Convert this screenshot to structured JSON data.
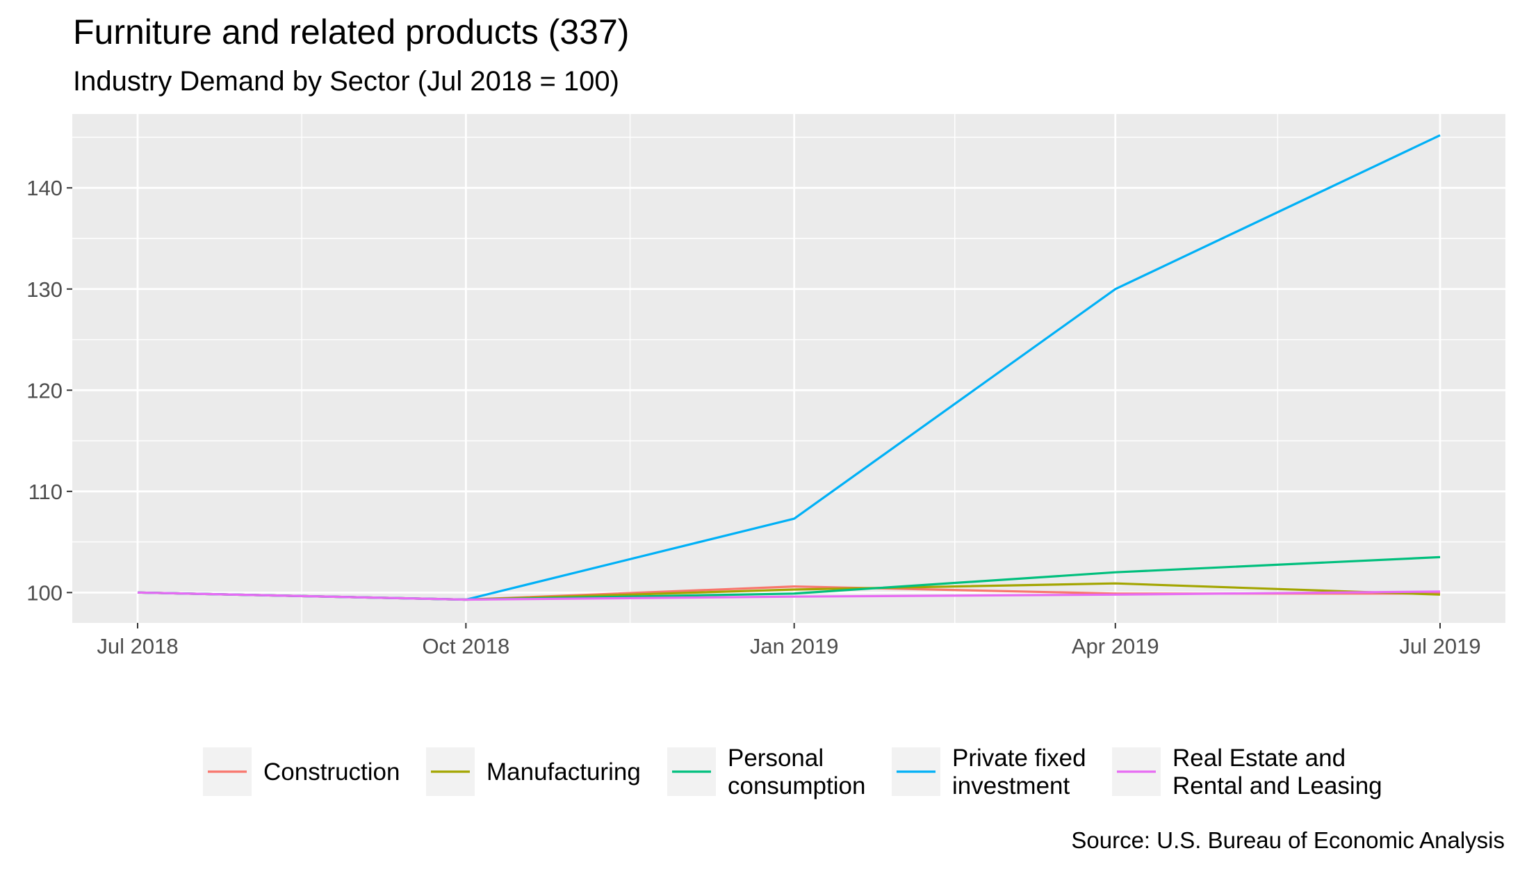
{
  "chart_data": {
    "type": "line",
    "title": "Furniture and related products (337)",
    "subtitle": "Industry Demand by Sector (Jul 2018 = 100)",
    "caption": "Source: U.S. Bureau of Economic Analysis",
    "x": [
      "2018-07-01",
      "2018-10-01",
      "2019-01-01",
      "2019-04-01",
      "2019-07-01"
    ],
    "x_tick_labels": [
      "Jul 2018",
      "Oct 2018",
      "Jan 2019",
      "Apr 2019",
      "Jul 2019"
    ],
    "y_ticks": [
      100,
      110,
      120,
      130,
      140
    ],
    "ylim": [
      97,
      147.3
    ],
    "grid": true,
    "legend_position": "bottom",
    "series": [
      {
        "name": "Construction",
        "color": "#F8766D",
        "values": [
          100,
          99.3,
          100.6,
          99.9,
          99.9
        ]
      },
      {
        "name": "Manufacturing",
        "color": "#A3A500",
        "values": [
          100,
          99.3,
          100.3,
          100.9,
          99.8
        ]
      },
      {
        "name": "Personal consumption",
        "color": "#00BF7D",
        "values": [
          100,
          99.3,
          99.9,
          102.0,
          103.5
        ]
      },
      {
        "name": "Private fixed investment",
        "color": "#00B0F6",
        "values": [
          100,
          99.3,
          107.3,
          130.0,
          145.2
        ]
      },
      {
        "name": "Real Estate and Rental and Leasing",
        "color": "#E76BF3",
        "values": [
          100,
          99.3,
          99.6,
          99.8,
          100.1
        ]
      }
    ],
    "legend_labels": [
      [
        "Construction"
      ],
      [
        "Manufacturing"
      ],
      [
        "Personal",
        "consumption"
      ],
      [
        "Private fixed",
        "investment"
      ],
      [
        "Real Estate and",
        "Rental and Leasing"
      ]
    ]
  }
}
